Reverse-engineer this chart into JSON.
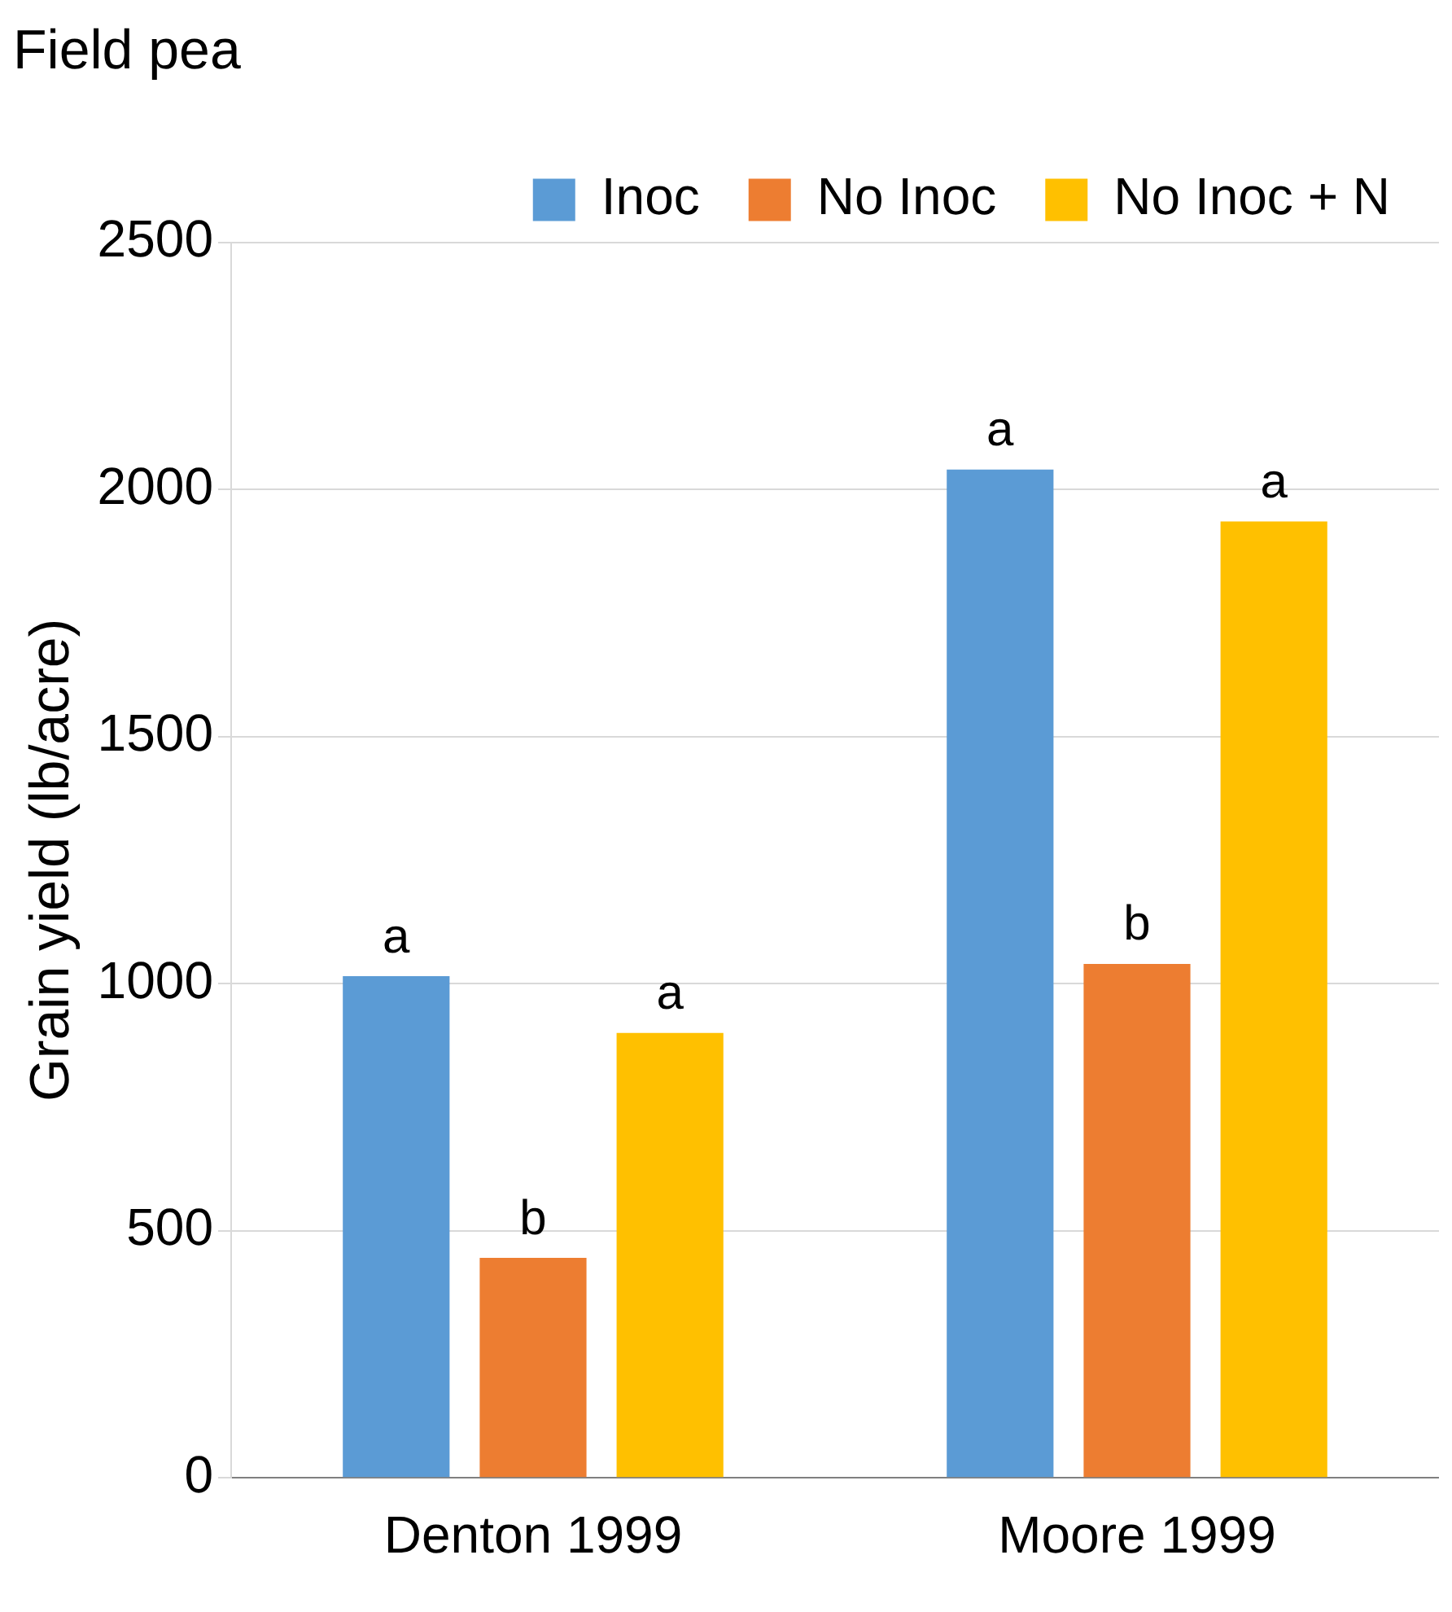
{
  "chart_data": {
    "type": "bar",
    "title": "Field pea",
    "ylabel": "Grain yield (lb/acre)",
    "categories": [
      "Denton 1999",
      "Moore 1999"
    ],
    "series": [
      {
        "name": "Inoc",
        "color": "#5b9bd5",
        "values": [
          1015,
          2040
        ],
        "value_labels": [
          "a",
          "a"
        ]
      },
      {
        "name": "No Inoc",
        "color": "#ed7d31",
        "values": [
          445,
          1040
        ],
        "value_labels": [
          "b",
          "b"
        ]
      },
      {
        "name": "No Inoc + N",
        "color": "#ffc000",
        "values": [
          900,
          1935
        ],
        "value_labels": [
          "a",
          "a"
        ]
      }
    ],
    "ylim": [
      0,
      2500
    ],
    "yticks": [
      0,
      500,
      1000,
      1500,
      2000,
      2500
    ],
    "grid": "y",
    "legend": "top right"
  }
}
